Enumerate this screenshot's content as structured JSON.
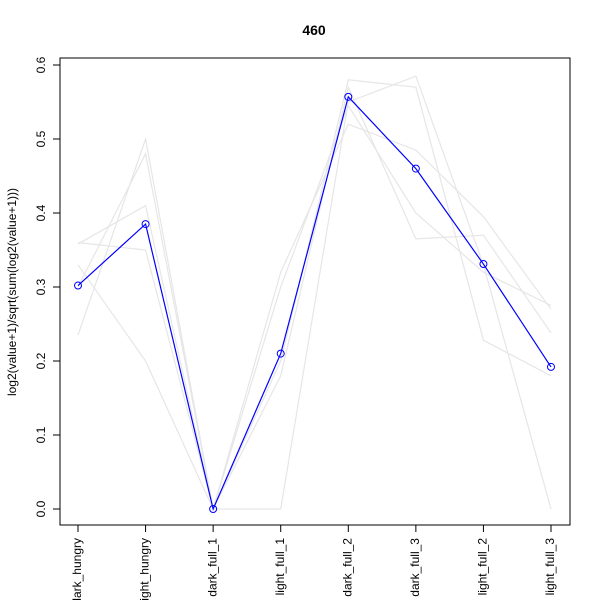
{
  "chart_data": {
    "type": "line",
    "title": "460",
    "xlabel": "",
    "ylabel": "log2(value+1)/sqrt(sum(log2(value+1)))",
    "categories": [
      "dark_hungry",
      "light_hungry",
      "dark_full_1",
      "light_full_1",
      "dark_full_2",
      "dark_full_3",
      "light_full_2",
      "light_full_3"
    ],
    "ylim": [
      0,
      0.6
    ],
    "yticks": [
      0.0,
      0.1,
      0.2,
      0.3,
      0.4,
      0.5,
      0.6
    ],
    "ytick_labels": [
      "0.0",
      "0.1",
      "0.2",
      "0.3",
      "0.4",
      "0.5",
      "0.6"
    ],
    "grid": false,
    "highlight_color": "#0000ff",
    "background_color": "#e6e6e6",
    "series": [
      {
        "values": [
          0.302,
          0.385,
          0.0,
          0.21,
          0.557,
          0.46,
          0.331,
          0.192
        ],
        "highlight": true
      }
    ],
    "background_series": [
      {
        "values": [
          0.33,
          0.2,
          0.0,
          0.0,
          0.55,
          0.585,
          0.33,
          0.0
        ]
      },
      {
        "values": [
          0.235,
          0.5,
          0.0,
          0.32,
          0.52,
          0.485,
          0.395,
          0.27
        ]
      },
      {
        "values": [
          0.36,
          0.35,
          0.0,
          0.2,
          0.58,
          0.57,
          0.228,
          0.18
        ]
      },
      {
        "values": [
          0.358,
          0.41,
          0.0,
          0.18,
          0.57,
          0.365,
          0.37,
          0.238
        ]
      },
      {
        "values": [
          0.3,
          0.48,
          0.0,
          0.3,
          0.545,
          0.4,
          0.32,
          0.275
        ]
      }
    ]
  }
}
